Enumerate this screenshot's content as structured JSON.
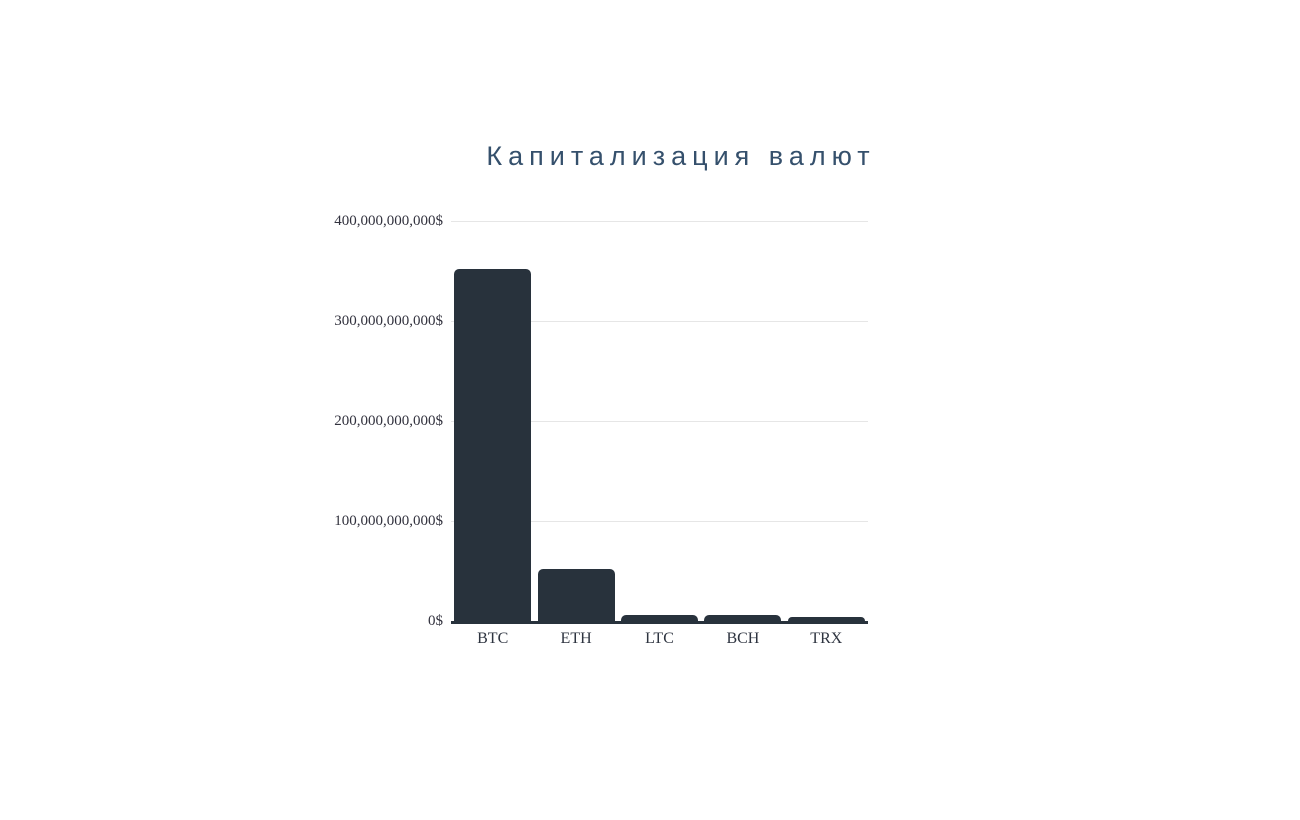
{
  "page": {
    "background_color": "#ffffff"
  },
  "chart": {
    "title_color": "#35506c",
    "bar_color": "#28323c",
    "axis_color": "#28323c",
    "gridline_color": "#e6e6e6",
    "tick_label_color": "#32323e"
  },
  "chart_data": {
    "type": "bar",
    "title": "Капитализация валют",
    "categories": [
      "BTC",
      "ETH",
      "LTC",
      "BCH",
      "TRX"
    ],
    "values": [
      352000000000,
      52000000000,
      6000000000,
      6000000000,
      4000000000
    ],
    "xlabel": "",
    "ylabel": "",
    "ylim": [
      0,
      400000000000
    ],
    "yticks": [
      {
        "value": 400000000000,
        "label": "400,000,000,000$"
      },
      {
        "value": 300000000000,
        "label": "300,000,000,000$"
      },
      {
        "value": 200000000000,
        "label": "200,000,000,000$"
      },
      {
        "value": 100000000000,
        "label": "100,000,000,000$"
      },
      {
        "value": 0,
        "label": "0$"
      }
    ],
    "grid": true,
    "legend": "none",
    "bar_corner_radius_px": 5
  }
}
